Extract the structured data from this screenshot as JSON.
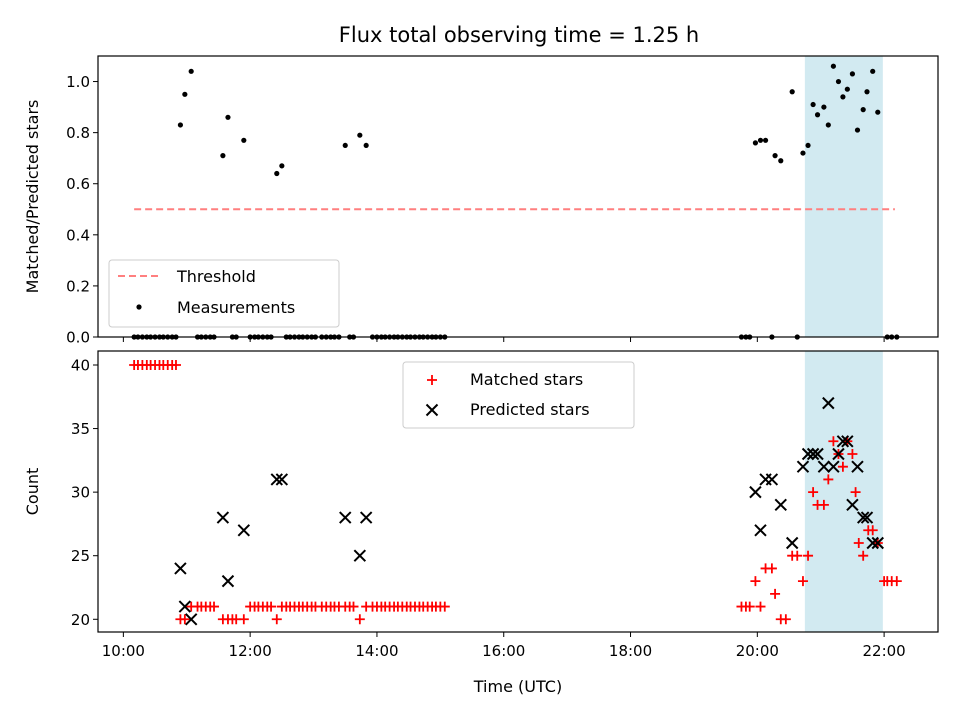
{
  "title": "Flux total observing time = 1.25 h",
  "colors": {
    "threshold": "#ff7f7f",
    "measurement": "#000000",
    "matched": "#ff0000",
    "predicted": "#000000",
    "highlight": "#add8e6"
  },
  "chart_data": [
    {
      "type": "scatter",
      "name": "ratio",
      "ylabel": "Matched/Predicted stars",
      "xlabel": "",
      "xlim": [
        9.6,
        22.85
      ],
      "ylim": [
        0,
        1.1
      ],
      "x_ticks": [
        10,
        12,
        14,
        16,
        18,
        20,
        22
      ],
      "y_ticks": [
        0.0,
        0.2,
        0.4,
        0.6,
        0.8,
        1.0
      ],
      "y_tick_labels": [
        "0.0",
        "0.2",
        "0.4",
        "0.6",
        "0.8",
        "1.0"
      ],
      "highlight_span": [
        20.75,
        21.98
      ],
      "legend": {
        "position": "lower left",
        "entries": [
          "Threshold",
          "Measurements"
        ]
      },
      "threshold": {
        "label": "Threshold",
        "y": 0.5,
        "x": [
          10.17,
          22.17
        ],
        "style": "dashed"
      },
      "series": [
        {
          "name": "Measurements",
          "marker": "dot",
          "points": [
            [
              10.17,
              0
            ],
            [
              10.23,
              0
            ],
            [
              10.3,
              0
            ],
            [
              10.37,
              0
            ],
            [
              10.43,
              0
            ],
            [
              10.5,
              0
            ],
            [
              10.57,
              0
            ],
            [
              10.63,
              0
            ],
            [
              10.7,
              0
            ],
            [
              10.77,
              0
            ],
            [
              10.83,
              0
            ],
            [
              10.9,
              0.83
            ],
            [
              10.97,
              0.95
            ],
            [
              11.07,
              1.04
            ],
            [
              11.17,
              0
            ],
            [
              11.23,
              0
            ],
            [
              11.3,
              0
            ],
            [
              11.37,
              0
            ],
            [
              11.43,
              0
            ],
            [
              11.57,
              0.71
            ],
            [
              11.65,
              0.86
            ],
            [
              11.72,
              0
            ],
            [
              11.78,
              0
            ],
            [
              11.9,
              0.77
            ],
            [
              12.0,
              0
            ],
            [
              12.07,
              0
            ],
            [
              12.13,
              0
            ],
            [
              12.2,
              0
            ],
            [
              12.27,
              0
            ],
            [
              12.33,
              0
            ],
            [
              12.42,
              0.64
            ],
            [
              12.5,
              0.67
            ],
            [
              12.57,
              0
            ],
            [
              12.63,
              0
            ],
            [
              12.7,
              0
            ],
            [
              12.77,
              0
            ],
            [
              12.83,
              0
            ],
            [
              12.9,
              0
            ],
            [
              12.97,
              0
            ],
            [
              13.03,
              0
            ],
            [
              13.13,
              0
            ],
            [
              13.2,
              0
            ],
            [
              13.27,
              0
            ],
            [
              13.33,
              0
            ],
            [
              13.4,
              0
            ],
            [
              13.5,
              0.75
            ],
            [
              13.57,
              0
            ],
            [
              13.63,
              0
            ],
            [
              13.73,
              0.79
            ],
            [
              13.83,
              0.75
            ],
            [
              13.93,
              0
            ],
            [
              14.0,
              0
            ],
            [
              14.07,
              0
            ],
            [
              14.13,
              0
            ],
            [
              14.2,
              0
            ],
            [
              14.27,
              0
            ],
            [
              14.33,
              0
            ],
            [
              14.4,
              0
            ],
            [
              14.47,
              0
            ],
            [
              14.53,
              0
            ],
            [
              14.6,
              0
            ],
            [
              14.67,
              0
            ],
            [
              14.73,
              0
            ],
            [
              14.8,
              0
            ],
            [
              14.87,
              0
            ],
            [
              14.93,
              0
            ],
            [
              15.0,
              0
            ],
            [
              15.07,
              0
            ],
            [
              19.75,
              0
            ],
            [
              19.82,
              0
            ],
            [
              19.88,
              0
            ],
            [
              19.97,
              0.76
            ],
            [
              20.05,
              0.77
            ],
            [
              20.13,
              0.77
            ],
            [
              20.28,
              0.71
            ],
            [
              20.37,
              0.69
            ],
            [
              20.55,
              0.96
            ],
            [
              20.23,
              0
            ],
            [
              20.63,
              0
            ],
            [
              20.72,
              0.72
            ],
            [
              20.8,
              0.75
            ],
            [
              20.88,
              0.91
            ],
            [
              20.95,
              0.87
            ],
            [
              21.05,
              0.9
            ],
            [
              21.12,
              0.83
            ],
            [
              21.2,
              1.06
            ],
            [
              21.28,
              1.0
            ],
            [
              21.35,
              0.94
            ],
            [
              21.42,
              0.97
            ],
            [
              21.5,
              1.03
            ],
            [
              21.58,
              0.81
            ],
            [
              21.67,
              0.89
            ],
            [
              21.73,
              0.96
            ],
            [
              21.82,
              1.04
            ],
            [
              21.9,
              0.88
            ],
            [
              22.05,
              0
            ],
            [
              22.12,
              0
            ],
            [
              22.2,
              0
            ]
          ]
        }
      ]
    },
    {
      "type": "scatter",
      "name": "counts",
      "ylabel": "Count",
      "xlabel": "Time (UTC)",
      "xlim": [
        9.6,
        22.85
      ],
      "ylim": [
        19,
        41.1
      ],
      "x_ticks": [
        10,
        12,
        14,
        16,
        18,
        20,
        22
      ],
      "x_tick_labels": [
        "10:00",
        "12:00",
        "14:00",
        "16:00",
        "18:00",
        "20:00",
        "22:00"
      ],
      "y_ticks": [
        20,
        25,
        30,
        35,
        40
      ],
      "y_tick_labels": [
        "20",
        "25",
        "30",
        "35",
        "40"
      ],
      "highlight_span": [
        20.75,
        21.98
      ],
      "legend": {
        "position": "upper center",
        "entries": [
          "Matched stars",
          "Predicted stars"
        ]
      },
      "series": [
        {
          "name": "Matched stars",
          "marker": "plus",
          "points": [
            [
              10.17,
              40
            ],
            [
              10.23,
              40
            ],
            [
              10.3,
              40
            ],
            [
              10.37,
              40
            ],
            [
              10.43,
              40
            ],
            [
              10.5,
              40
            ],
            [
              10.57,
              40
            ],
            [
              10.63,
              40
            ],
            [
              10.7,
              40
            ],
            [
              10.77,
              40
            ],
            [
              10.83,
              40
            ],
            [
              10.9,
              20
            ],
            [
              10.97,
              20
            ],
            [
              11.07,
              21
            ],
            [
              11.17,
              21
            ],
            [
              11.23,
              21
            ],
            [
              11.3,
              21
            ],
            [
              11.37,
              21
            ],
            [
              11.43,
              21
            ],
            [
              11.57,
              20
            ],
            [
              11.65,
              20
            ],
            [
              11.72,
              20
            ],
            [
              11.78,
              20
            ],
            [
              11.9,
              20
            ],
            [
              12.0,
              21
            ],
            [
              12.07,
              21
            ],
            [
              12.13,
              21
            ],
            [
              12.2,
              21
            ],
            [
              12.27,
              21
            ],
            [
              12.33,
              21
            ],
            [
              12.42,
              20
            ],
            [
              12.5,
              21
            ],
            [
              12.57,
              21
            ],
            [
              12.63,
              21
            ],
            [
              12.7,
              21
            ],
            [
              12.77,
              21
            ],
            [
              12.83,
              21
            ],
            [
              12.9,
              21
            ],
            [
              12.97,
              21
            ],
            [
              13.03,
              21
            ],
            [
              13.13,
              21
            ],
            [
              13.2,
              21
            ],
            [
              13.27,
              21
            ],
            [
              13.33,
              21
            ],
            [
              13.4,
              21
            ],
            [
              13.5,
              21
            ],
            [
              13.57,
              21
            ],
            [
              13.63,
              21
            ],
            [
              13.73,
              20
            ],
            [
              13.83,
              21
            ],
            [
              13.93,
              21
            ],
            [
              14.0,
              21
            ],
            [
              14.07,
              21
            ],
            [
              14.13,
              21
            ],
            [
              14.2,
              21
            ],
            [
              14.27,
              21
            ],
            [
              14.33,
              21
            ],
            [
              14.4,
              21
            ],
            [
              14.47,
              21
            ],
            [
              14.53,
              21
            ],
            [
              14.6,
              21
            ],
            [
              14.67,
              21
            ],
            [
              14.73,
              21
            ],
            [
              14.8,
              21
            ],
            [
              14.87,
              21
            ],
            [
              14.93,
              21
            ],
            [
              15.0,
              21
            ],
            [
              15.07,
              21
            ],
            [
              19.75,
              21
            ],
            [
              19.82,
              21
            ],
            [
              19.88,
              21
            ],
            [
              19.97,
              23
            ],
            [
              20.05,
              21
            ],
            [
              20.13,
              24
            ],
            [
              20.23,
              24
            ],
            [
              20.28,
              22
            ],
            [
              20.37,
              20
            ],
            [
              20.45,
              20
            ],
            [
              20.55,
              25
            ],
            [
              20.63,
              25
            ],
            [
              20.72,
              23
            ],
            [
              20.8,
              25
            ],
            [
              20.88,
              30
            ],
            [
              20.95,
              29
            ],
            [
              21.05,
              29
            ],
            [
              21.12,
              31
            ],
            [
              21.2,
              34
            ],
            [
              21.28,
              33
            ],
            [
              21.35,
              32
            ],
            [
              21.42,
              34
            ],
            [
              21.5,
              33
            ],
            [
              21.55,
              30
            ],
            [
              21.6,
              26
            ],
            [
              21.67,
              25
            ],
            [
              21.75,
              27
            ],
            [
              21.82,
              27
            ],
            [
              21.9,
              26
            ],
            [
              22.0,
              23
            ],
            [
              22.05,
              23
            ],
            [
              22.12,
              23
            ],
            [
              22.2,
              23
            ]
          ]
        },
        {
          "name": "Predicted stars",
          "marker": "x",
          "points": [
            [
              10.9,
              24
            ],
            [
              10.97,
              21
            ],
            [
              11.07,
              20
            ],
            [
              11.57,
              28
            ],
            [
              11.65,
              23
            ],
            [
              11.9,
              27
            ],
            [
              12.42,
              31
            ],
            [
              12.5,
              31
            ],
            [
              13.5,
              28
            ],
            [
              13.73,
              25
            ],
            [
              13.83,
              28
            ],
            [
              19.97,
              30
            ],
            [
              20.05,
              27
            ],
            [
              20.13,
              31
            ],
            [
              20.23,
              31
            ],
            [
              20.37,
              29
            ],
            [
              20.55,
              26
            ],
            [
              20.72,
              32
            ],
            [
              20.8,
              33
            ],
            [
              20.88,
              33
            ],
            [
              20.95,
              33
            ],
            [
              21.05,
              32
            ],
            [
              21.12,
              37
            ],
            [
              21.2,
              32
            ],
            [
              21.28,
              33
            ],
            [
              21.35,
              34
            ],
            [
              21.42,
              34
            ],
            [
              21.5,
              29
            ],
            [
              21.58,
              32
            ],
            [
              21.67,
              28
            ],
            [
              21.73,
              28
            ],
            [
              21.82,
              26
            ],
            [
              21.9,
              26
            ]
          ]
        }
      ]
    }
  ]
}
